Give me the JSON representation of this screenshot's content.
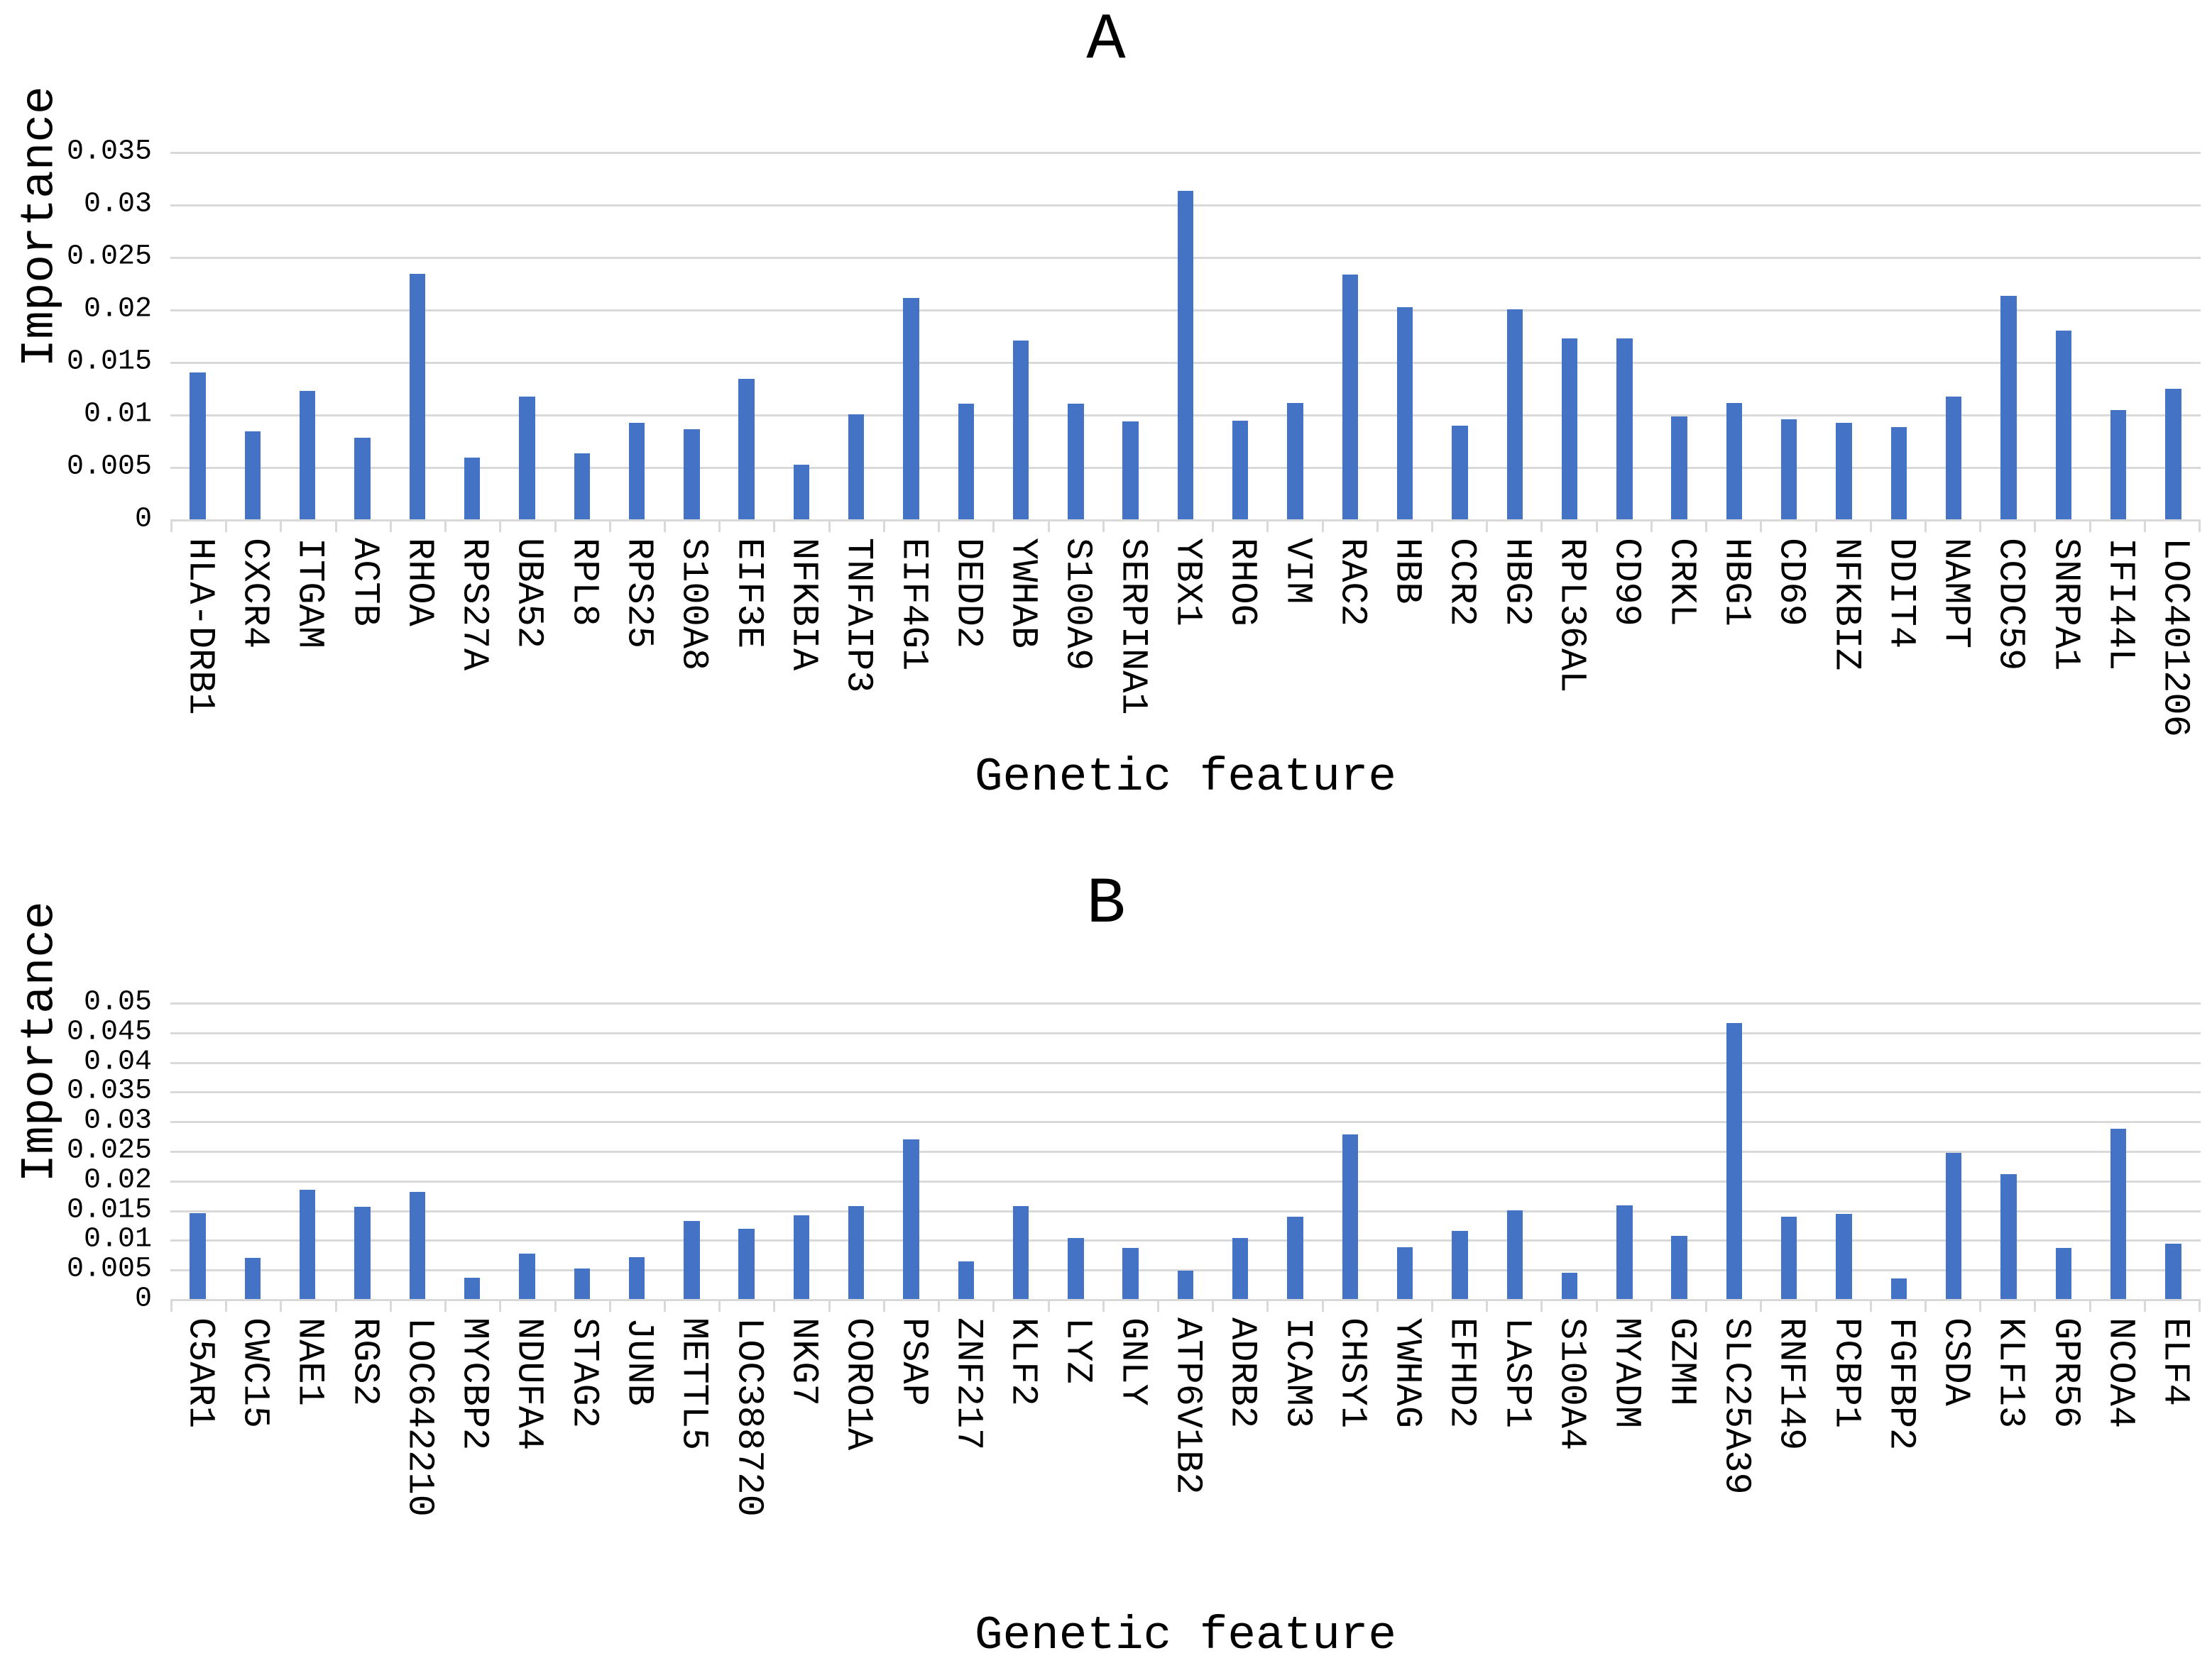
{
  "page": {
    "background": "#ffffff",
    "text_color": "#000000",
    "gridline_color": "#d9d9d9",
    "axis_color": "#d9d9d9",
    "bar_color": "#4472C4"
  },
  "chart_data": [
    {
      "type": "bar",
      "title": "A",
      "ylabel": "Importance",
      "xlabel": "Genetic feature",
      "ylim": [
        0,
        0.035
      ],
      "ytick_step": 0.005,
      "ytick_labels": [
        "0.035",
        "0.03",
        "0.025",
        "0.02",
        "0.015",
        "0.01",
        "0.005",
        "0"
      ],
      "grid": "horizontal",
      "legend": "none",
      "bar_color": "#4472C4",
      "categories": [
        "HLA-DRB1",
        "CXCR4",
        "ITGAM",
        "ACTB",
        "RHOA",
        "RPS27A",
        "UBA52",
        "RPL8",
        "RPS25",
        "S100A8",
        "EIF3E",
        "NFKBIA",
        "TNFAIP3",
        "EIF4G1",
        "DEDD2",
        "YWHAB",
        "S100A9",
        "SERPINA1",
        "YBX1",
        "RHOG",
        "VIM",
        "RAC2",
        "HBB",
        "CCR2",
        "HBG2",
        "RPL36AL",
        "CD99",
        "CRKL",
        "HBG1",
        "CD69",
        "NFKBIZ",
        "DDIT4",
        "NAMPT",
        "CCDC59",
        "SNRPA1",
        "IFI44L",
        "LOC401206"
      ],
      "values": [
        0.014,
        0.0084,
        0.0122,
        0.0078,
        0.0234,
        0.0059,
        0.0117,
        0.0063,
        0.0092,
        0.0086,
        0.0134,
        0.0052,
        0.01,
        0.0211,
        0.011,
        0.017,
        0.011,
        0.0093,
        0.0313,
        0.0094,
        0.0111,
        0.0233,
        0.0202,
        0.0089,
        0.02,
        0.0172,
        0.0172,
        0.0098,
        0.0111,
        0.0095,
        0.0092,
        0.0088,
        0.0117,
        0.0213,
        0.018,
        0.0104,
        0.0124
      ]
    },
    {
      "type": "bar",
      "title": "B",
      "ylabel": "Importance",
      "xlabel": "Genetic feature",
      "ylim": [
        0,
        0.05
      ],
      "ytick_step": 0.005,
      "ytick_labels": [
        "0.05",
        "0.045",
        "0.04",
        "0.035",
        "0.03",
        "0.025",
        "0.02",
        "0.015",
        "0.01",
        "0.005",
        "0"
      ],
      "grid": "horizontal",
      "legend": "none",
      "bar_color": "#4472C4",
      "categories": [
        "C5AR1",
        "CWC15",
        "NAE1",
        "RGS2",
        "LOC642210",
        "MYCBP2",
        "NDUFA4",
        "STAG2",
        "JUNB",
        "METTL5",
        "LOC388720",
        "NKG7",
        "CORO1A",
        "PSAP",
        "ZNF217",
        "KLF2",
        "LYZ",
        "GNLY",
        "ATP6V1B2",
        "ADRB2",
        "ICAM3",
        "CHSY1",
        "YWHAG",
        "EFHD2",
        "LASP1",
        "S100A4",
        "MYADM",
        "GZMH",
        "SLC25A39",
        "RNF149",
        "PCBP1",
        "FGFBP2",
        "CSDA",
        "KLF13",
        "GPR56",
        "NCOA4",
        "ELF4"
      ],
      "values": [
        0.0145,
        0.0069,
        0.0184,
        0.0155,
        0.0181,
        0.0036,
        0.0076,
        0.0051,
        0.0071,
        0.0131,
        0.0119,
        0.0141,
        0.0157,
        0.0269,
        0.0063,
        0.0157,
        0.0103,
        0.0086,
        0.0048,
        0.0103,
        0.0139,
        0.0277,
        0.0087,
        0.0115,
        0.015,
        0.0044,
        0.0158,
        0.0106,
        0.0465,
        0.0139,
        0.0144,
        0.0035,
        0.0247,
        0.021,
        0.0086,
        0.0287,
        0.0093
      ]
    }
  ]
}
